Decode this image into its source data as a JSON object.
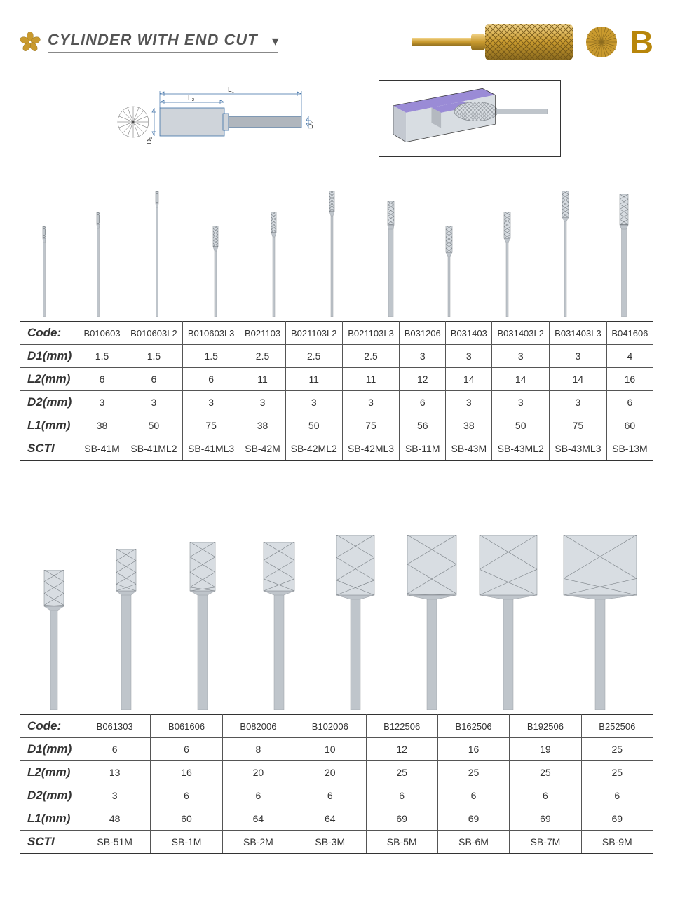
{
  "header": {
    "title": "CYLINDER WITH END CUT",
    "type_letter": "B",
    "colors": {
      "gold": "#c99a2e",
      "gold_dark": "#8a6a1e",
      "title_text": "#555555",
      "border": "#555555"
    }
  },
  "diagram": {
    "labels": {
      "L1": "L₁",
      "L2": "L₂",
      "D1": "D₁",
      "D2": "D₂"
    },
    "colors": {
      "outline": "#3a6ea5",
      "body_fill": "#cfd4da",
      "shank_fill": "#b0b6bd",
      "workpiece_top": "#9a8bd6",
      "workpiece_side": "#c4c9d1"
    }
  },
  "table1": {
    "row_labels": [
      "Code:",
      "D1(mm)",
      "L2(mm)",
      "D2(mm)",
      "L1(mm)",
      "SCTI"
    ],
    "columns": [
      "B010603",
      "B010603L2",
      "B010603L3",
      "B021103",
      "B021103L2",
      "B021103L3",
      "B031206",
      "B031403",
      "B031403L2",
      "B031403L3",
      "B041606"
    ],
    "D1": [
      1.5,
      1.5,
      1.5,
      2.5,
      2.5,
      2.5,
      3,
      3,
      3,
      3,
      4
    ],
    "L2": [
      6,
      6,
      6,
      11,
      11,
      11,
      12,
      14,
      14,
      14,
      16
    ],
    "D2": [
      3,
      3,
      3,
      3,
      3,
      3,
      6,
      3,
      3,
      3,
      6
    ],
    "L1": [
      38,
      50,
      75,
      38,
      50,
      75,
      56,
      38,
      50,
      75,
      60
    ],
    "SCTI": [
      "SB-41M",
      "SB-41ML2",
      "SB-41ML3",
      "SB-42M",
      "SB-42ML2",
      "SB-42ML3",
      "SB-11M",
      "SB-43M",
      "SB-43ML2",
      "SB-43ML3",
      "SB-13M"
    ]
  },
  "table2": {
    "row_labels": [
      "Code:",
      "D1(mm)",
      "L2(mm)",
      "D2(mm)",
      "L1(mm)",
      "SCTI"
    ],
    "columns": [
      "B061303",
      "B061606",
      "B082006",
      "B102006",
      "B122506",
      "B162506",
      "B192506",
      "B252506"
    ],
    "D1": [
      6,
      6,
      8,
      10,
      12,
      16,
      19,
      25
    ],
    "L2": [
      13,
      16,
      20,
      20,
      25,
      25,
      25,
      25
    ],
    "D2": [
      3,
      6,
      6,
      6,
      6,
      6,
      6,
      6
    ],
    "L1": [
      48,
      60,
      64,
      64,
      69,
      69,
      69,
      69
    ],
    "SCTI": [
      "SB-51M",
      "SB-1M",
      "SB-2M",
      "SB-3M",
      "SB-5M",
      "SB-6M",
      "SB-7M",
      "SB-9M"
    ]
  },
  "burrs_row1": [
    {
      "head_w": 4,
      "head_h": 18,
      "shank_w": 3,
      "total_h": 130
    },
    {
      "head_w": 4,
      "head_h": 18,
      "shank_w": 3,
      "total_h": 150
    },
    {
      "head_w": 4,
      "head_h": 18,
      "shank_w": 3,
      "total_h": 180
    },
    {
      "head_w": 7,
      "head_h": 30,
      "shank_w": 3,
      "total_h": 130
    },
    {
      "head_w": 7,
      "head_h": 30,
      "shank_w": 3,
      "total_h": 150
    },
    {
      "head_w": 7,
      "head_h": 30,
      "shank_w": 3,
      "total_h": 180
    },
    {
      "head_w": 9,
      "head_h": 34,
      "shank_w": 7,
      "total_h": 165
    },
    {
      "head_w": 9,
      "head_h": 38,
      "shank_w": 3,
      "total_h": 130
    },
    {
      "head_w": 9,
      "head_h": 38,
      "shank_w": 3,
      "total_h": 150
    },
    {
      "head_w": 9,
      "head_h": 38,
      "shank_w": 3,
      "total_h": 180
    },
    {
      "head_w": 12,
      "head_h": 44,
      "shank_w": 7,
      "total_h": 175
    }
  ],
  "burrs_row2": [
    {
      "head_w": 28,
      "head_h": 52,
      "shank_w": 10,
      "total_h": 200
    },
    {
      "head_w": 28,
      "head_h": 60,
      "shank_w": 14,
      "total_h": 230
    },
    {
      "head_w": 36,
      "head_h": 70,
      "shank_w": 14,
      "total_h": 240
    },
    {
      "head_w": 44,
      "head_h": 70,
      "shank_w": 14,
      "total_h": 240
    },
    {
      "head_w": 54,
      "head_h": 86,
      "shank_w": 14,
      "total_h": 250
    },
    {
      "head_w": 70,
      "head_h": 86,
      "shank_w": 14,
      "total_h": 250
    },
    {
      "head_w": 82,
      "head_h": 86,
      "shank_w": 14,
      "total_h": 250
    },
    {
      "head_w": 104,
      "head_h": 86,
      "shank_w": 14,
      "total_h": 250
    }
  ],
  "burr_style": {
    "head_fill": "#d8dde2",
    "head_stroke": "#8a9096",
    "shank_fill": "#bfc5cb",
    "shank_stroke": "#9a9fa5",
    "hatch": "#7a8086"
  }
}
